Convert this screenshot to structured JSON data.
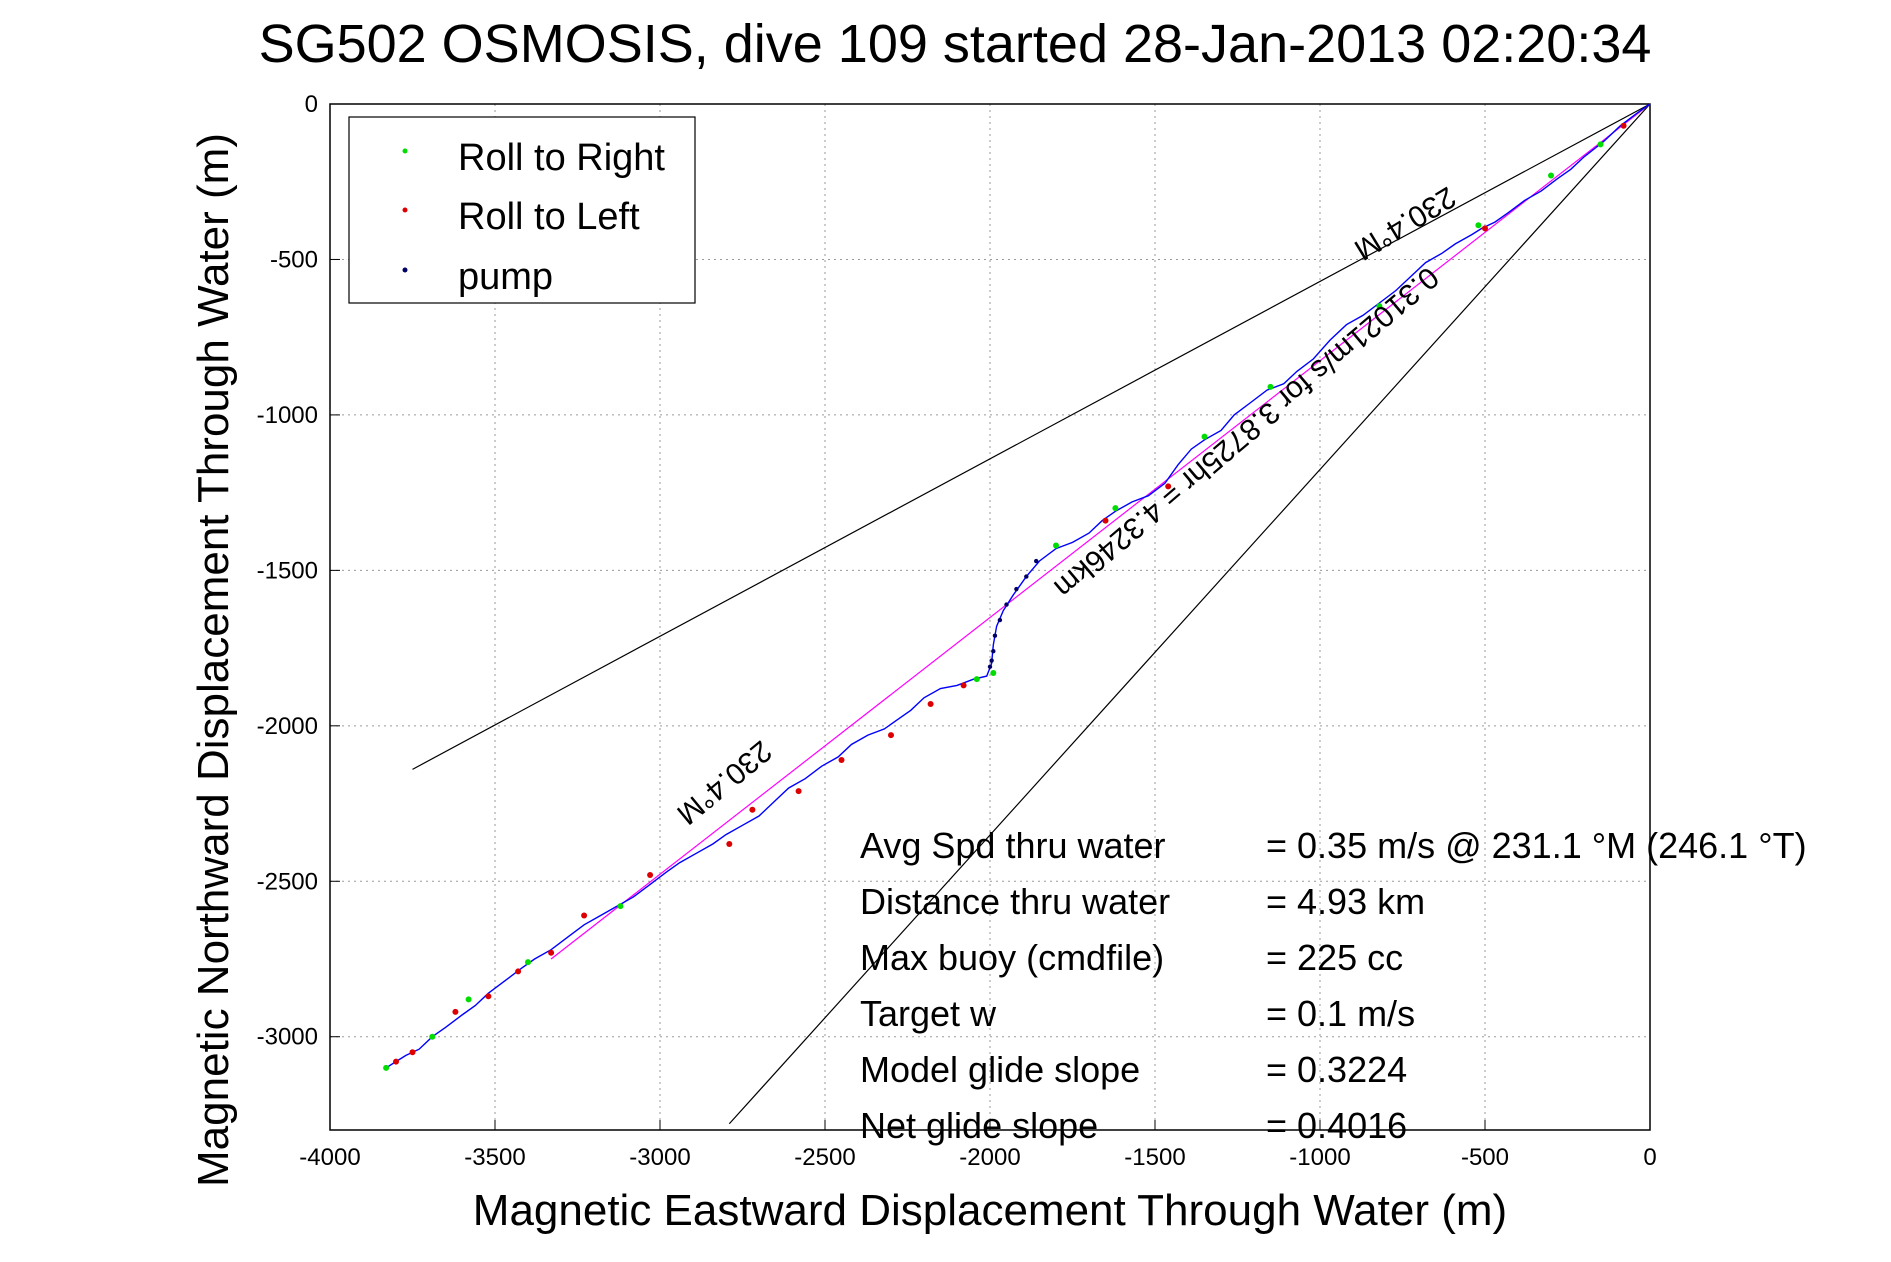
{
  "chart_data": {
    "type": "scatter",
    "title": "SG502 OSMOSIS, dive 109 started 28-Jan-2013 02:20:34",
    "xlabel": "Magnetic Eastward Displacement Through Water (m)",
    "ylabel": "Magnetic Northward Displacement Through Water (m)",
    "xlim": [
      -4000,
      0
    ],
    "ylim": [
      -3300,
      0
    ],
    "x_ticks": [
      -4000,
      -3500,
      -3000,
      -2500,
      -2000,
      -1500,
      -1000,
      -500,
      0
    ],
    "y_ticks": [
      0,
      -500,
      -1000,
      -1500,
      -2000,
      -2500,
      -3000
    ],
    "grid": true,
    "legend": {
      "placement": "top-left",
      "entries": [
        {
          "label": "Roll to Right",
          "color": "#00dd00"
        },
        {
          "label": "Roll to Left",
          "color": "#dd0000"
        },
        {
          "label": "pump",
          "color": "#000066"
        }
      ]
    },
    "colors": {
      "track": "#0000ff",
      "heading": "#ff00ff",
      "lines": "#000000"
    },
    "track": [
      [
        0,
        0
      ],
      [
        -40,
        -30
      ],
      [
        -90,
        -70
      ],
      [
        -140,
        -120
      ],
      [
        -200,
        -170
      ],
      [
        -240,
        -210
      ],
      [
        -280,
        -240
      ],
      [
        -330,
        -280
      ],
      [
        -380,
        -310
      ],
      [
        -430,
        -350
      ],
      [
        -470,
        -380
      ],
      [
        -510,
        -400
      ],
      [
        -540,
        -420
      ],
      [
        -590,
        -450
      ],
      [
        -630,
        -480
      ],
      [
        -680,
        -510
      ],
      [
        -720,
        -550
      ],
      [
        -770,
        -600
      ],
      [
        -820,
        -640
      ],
      [
        -870,
        -680
      ],
      [
        -920,
        -710
      ],
      [
        -970,
        -760
      ],
      [
        -1020,
        -820
      ],
      [
        -1070,
        -860
      ],
      [
        -1110,
        -900
      ],
      [
        -1160,
        -920
      ],
      [
        -1210,
        -960
      ],
      [
        -1260,
        -1000
      ],
      [
        -1300,
        -1050
      ],
      [
        -1350,
        -1080
      ],
      [
        -1390,
        -1110
      ],
      [
        -1430,
        -1160
      ],
      [
        -1470,
        -1220
      ],
      [
        -1520,
        -1260
      ],
      [
        -1570,
        -1280
      ],
      [
        -1620,
        -1310
      ],
      [
        -1660,
        -1340
      ],
      [
        -1700,
        -1380
      ],
      [
        -1750,
        -1410
      ],
      [
        -1800,
        -1430
      ],
      [
        -1850,
        -1470
      ],
      [
        -1890,
        -1520
      ],
      [
        -1930,
        -1580
      ],
      [
        -1960,
        -1630
      ],
      [
        -1980,
        -1680
      ],
      [
        -1990,
        -1740
      ],
      [
        -1995,
        -1800
      ],
      [
        -2010,
        -1840
      ],
      [
        -2050,
        -1850
      ],
      [
        -2100,
        -1870
      ],
      [
        -2150,
        -1880
      ],
      [
        -2200,
        -1910
      ],
      [
        -2240,
        -1950
      ],
      [
        -2280,
        -1980
      ],
      [
        -2320,
        -2010
      ],
      [
        -2370,
        -2030
      ],
      [
        -2420,
        -2060
      ],
      [
        -2460,
        -2100
      ],
      [
        -2510,
        -2130
      ],
      [
        -2560,
        -2170
      ],
      [
        -2610,
        -2200
      ],
      [
        -2650,
        -2240
      ],
      [
        -2700,
        -2290
      ],
      [
        -2750,
        -2320
      ],
      [
        -2800,
        -2350
      ],
      [
        -2840,
        -2380
      ],
      [
        -2890,
        -2410
      ],
      [
        -2940,
        -2440
      ],
      [
        -2980,
        -2470
      ],
      [
        -3030,
        -2510
      ],
      [
        -3080,
        -2550
      ],
      [
        -3130,
        -2580
      ],
      [
        -3180,
        -2610
      ],
      [
        -3230,
        -2640
      ],
      [
        -3280,
        -2680
      ],
      [
        -3330,
        -2720
      ],
      [
        -3380,
        -2750
      ],
      [
        -3420,
        -2780
      ],
      [
        -3470,
        -2820
      ],
      [
        -3520,
        -2860
      ],
      [
        -3560,
        -2900
      ],
      [
        -3600,
        -2930
      ],
      [
        -3650,
        -2970
      ],
      [
        -3690,
        -3000
      ],
      [
        -3730,
        -3040
      ],
      [
        -3770,
        -3060
      ],
      [
        -3800,
        -3080
      ],
      [
        -3830,
        -3100
      ]
    ],
    "roll_right": [
      [
        -150,
        -130
      ],
      [
        -300,
        -230
      ],
      [
        -520,
        -390
      ],
      [
        -820,
        -650
      ],
      [
        -1150,
        -910
      ],
      [
        -1350,
        -1070
      ],
      [
        -1620,
        -1300
      ],
      [
        -1800,
        -1420
      ],
      [
        -1990,
        -1830
      ],
      [
        -2040,
        -1850
      ],
      [
        -3120,
        -2580
      ],
      [
        -3400,
        -2760
      ],
      [
        -3580,
        -2880
      ],
      [
        -3690,
        -3000
      ],
      [
        -3830,
        -3100
      ]
    ],
    "roll_left": [
      [
        -80,
        -70
      ],
      [
        -500,
        -400
      ],
      [
        -1460,
        -1230
      ],
      [
        -1650,
        -1340
      ],
      [
        -2080,
        -1870
      ],
      [
        -2180,
        -1930
      ],
      [
        -2300,
        -2030
      ],
      [
        -2450,
        -2110
      ],
      [
        -2580,
        -2210
      ],
      [
        -2720,
        -2270
      ],
      [
        -2790,
        -2380
      ],
      [
        -3030,
        -2480
      ],
      [
        -3230,
        -2610
      ],
      [
        -3330,
        -2730
      ],
      [
        -3430,
        -2790
      ],
      [
        -3520,
        -2870
      ],
      [
        -3620,
        -2920
      ],
      [
        -3750,
        -3050
      ],
      [
        -3800,
        -3080
      ]
    ],
    "pump": [
      [
        -1860,
        -1470
      ],
      [
        -1890,
        -1520
      ],
      [
        -1920,
        -1560
      ],
      [
        -1950,
        -1610
      ],
      [
        -1970,
        -1660
      ],
      [
        -1985,
        -1710
      ],
      [
        -1990,
        -1760
      ],
      [
        -1995,
        -1790
      ],
      [
        -2000,
        -1810
      ]
    ],
    "heading_line": {
      "x": [
        0,
        -3330
      ],
      "y": [
        0,
        -2750
      ]
    },
    "bearing_lines": [
      {
        "x": [
          0,
          -3750
        ],
        "y": [
          0,
          -2140
        ]
      },
      {
        "x": [
          0,
          -2790
        ],
        "y": [
          0,
          -3280
        ]
      }
    ],
    "rotated_labels": [
      "230.4°M",
      "0.31021m/s for 3.8725hr = 4.3246km",
      "230.4°M"
    ],
    "summary": [
      {
        "label": "Avg Spd thru water",
        "value": "=  0.35 m/s @ 231.1 °M (246.1 °T)"
      },
      {
        "label": "Distance thru water",
        "value": "=  4.93 km"
      },
      {
        "label": "Max buoy (cmdfile)",
        "value": "= 225 cc"
      },
      {
        "label": "Target w",
        "value": "= 0.1 m/s"
      },
      {
        "label": "Model glide slope",
        "value": "= 0.3224"
      },
      {
        "label": "Net glide slope",
        "value": "= 0.4016"
      }
    ]
  }
}
